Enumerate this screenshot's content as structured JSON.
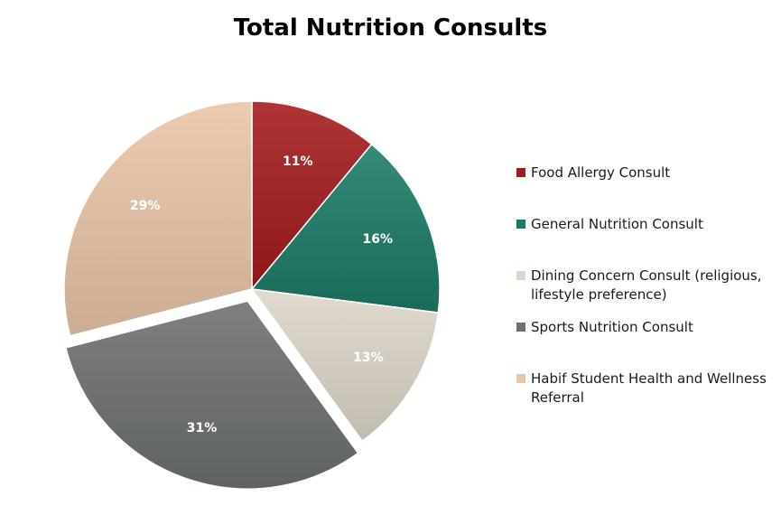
{
  "chart_data": {
    "type": "pie",
    "title": "Total Nutrition Consults",
    "legend_position": "right",
    "slices": [
      {
        "name": "Food Allergy Consult",
        "value": 11,
        "label": "11%",
        "color": "#a31a1a",
        "exploded": false
      },
      {
        "name": "General Nutrition Consult",
        "value": 16,
        "label": "16%",
        "color": "#1a7a64",
        "exploded": false
      },
      {
        "name": "Dining Concern Consult (religious, lifestyle preference)",
        "value": 13,
        "label": "13%",
        "color": "#ddd6c8",
        "exploded": false
      },
      {
        "name": "Sports Nutrition Consult",
        "value": 31,
        "label": "31%",
        "color": "#6b6f6d",
        "exploded": true
      },
      {
        "name": "Habif Student Health and Wellness Referral",
        "value": 29,
        "label": "29%",
        "color": "#e8c4a6",
        "exploded": false
      }
    ]
  }
}
